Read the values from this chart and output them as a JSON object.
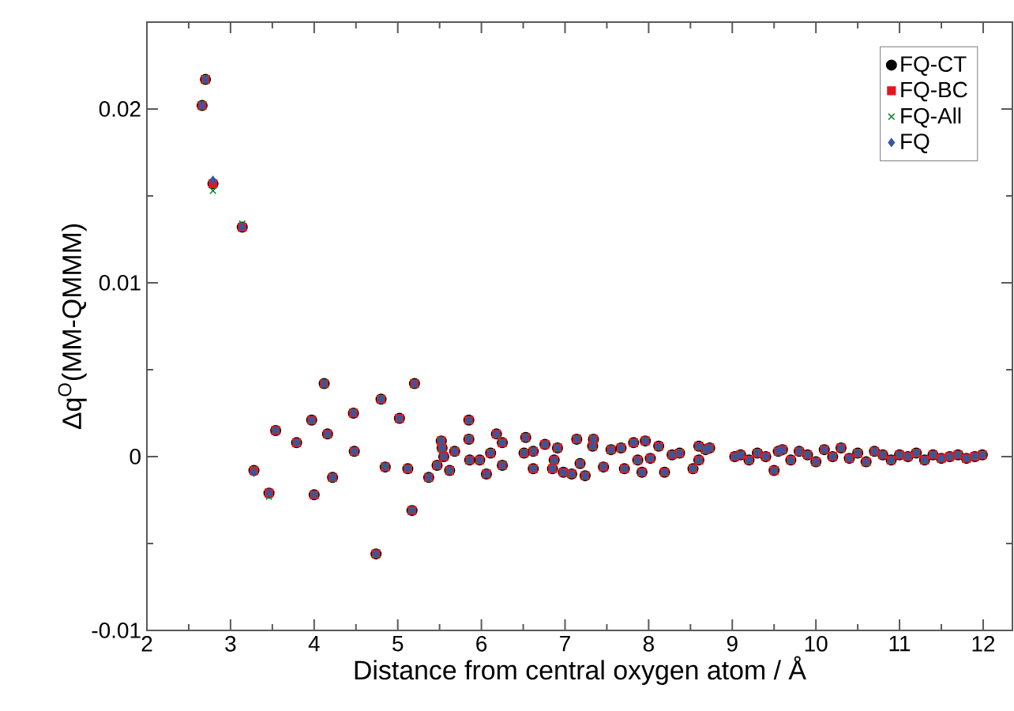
{
  "chart_data": {
    "type": "scatter",
    "xlabel": "Distance from central oxygen atom / Å",
    "ylabel": "Δq$^{O}$(MM-QMMM)",
    "xlim": [
      2,
      12.35
    ],
    "ylim": [
      -0.01,
      0.025
    ],
    "xticks": [
      2,
      3,
      4,
      5,
      6,
      7,
      8,
      9,
      10,
      11,
      12
    ],
    "yticks": [
      -0.01,
      0,
      0.01,
      0.02
    ],
    "grid": false,
    "legend": "top right",
    "x": [
      2.66,
      2.7,
      2.79,
      3.14,
      3.28,
      3.46,
      3.54,
      3.79,
      3.97,
      4.0,
      4.12,
      4.16,
      4.22,
      4.47,
      4.48,
      4.74,
      4.8,
      4.85,
      5.02,
      5.12,
      5.17,
      5.2,
      5.37,
      5.47,
      5.52,
      5.53,
      5.55,
      5.62,
      5.68,
      5.85,
      5.85,
      5.86,
      5.98,
      6.06,
      6.11,
      6.18,
      6.25,
      6.25,
      6.51,
      6.53,
      6.62,
      6.62,
      6.76,
      6.85,
      6.87,
      6.91,
      6.98,
      7.08,
      7.14,
      7.18,
      7.24,
      7.33,
      7.34,
      7.46,
      7.55,
      7.67,
      7.71,
      7.82,
      7.87,
      7.92,
      7.96,
      8.02,
      8.12,
      8.19,
      8.28,
      8.37,
      8.53,
      8.6,
      8.6,
      8.68,
      8.73,
      9.03,
      9.1,
      9.2,
      9.3,
      9.4,
      9.5,
      9.55,
      9.6,
      9.7,
      9.8,
      9.9,
      10.0,
      10.1,
      10.2,
      10.3,
      10.4,
      10.5,
      10.6,
      10.7,
      10.8,
      10.9,
      11.0,
      11.1,
      11.2,
      11.3,
      11.4,
      11.5,
      11.6,
      11.7,
      11.8,
      11.9,
      11.99
    ],
    "series": [
      {
        "name": "FQ-CT",
        "color": "#000000",
        "marker": "circle",
        "values": [
          0.0202,
          0.0217,
          0.0157,
          0.0132,
          -0.0008,
          -0.0021,
          0.0015,
          0.0008,
          0.0021,
          -0.0022,
          0.0042,
          0.0013,
          -0.0012,
          0.0025,
          0.0003,
          -0.0056,
          0.0033,
          -0.0006,
          0.0022,
          -0.0007,
          -0.0031,
          0.0042,
          -0.0012,
          -0.0005,
          0.0009,
          0.0005,
          0.0,
          -0.0008,
          0.0003,
          0.0021,
          0.001,
          -0.0002,
          -0.0002,
          -0.001,
          0.0002,
          0.0013,
          0.0008,
          -0.0005,
          0.0002,
          0.0011,
          0.0003,
          -0.0007,
          0.0007,
          -0.0007,
          -0.0002,
          0.0005,
          -0.0009,
          -0.001,
          0.001,
          -0.0004,
          -0.0011,
          0.0006,
          0.001,
          -0.0006,
          0.0004,
          0.0005,
          -0.0007,
          0.0008,
          -0.0002,
          -0.0009,
          0.0009,
          -0.0001,
          0.0006,
          -0.0009,
          0.0001,
          0.0002,
          -0.0007,
          0.0006,
          -0.0002,
          0.0004,
          0.0005,
          0.0,
          0.0001,
          -0.0002,
          0.0002,
          0.0,
          -0.0008,
          0.0003,
          0.0004,
          -0.0002,
          0.0003,
          0.0001,
          -0.0003,
          0.0004,
          0.0,
          0.0005,
          -0.0001,
          0.0002,
          -0.0003,
          0.0003,
          0.0001,
          -0.0002,
          0.0001,
          0.0,
          0.0002,
          -0.0002,
          0.0001,
          -0.0001,
          0.0,
          0.0001,
          -0.0001,
          0.0,
          0.0001
        ]
      },
      {
        "name": "FQ-BC",
        "color": "#e8141c",
        "marker": "square",
        "values": [
          0.0202,
          0.0217,
          0.0157,
          0.0132,
          -0.0008,
          -0.0021,
          0.0015,
          0.0008,
          0.0021,
          -0.0022,
          0.0042,
          0.0013,
          -0.0012,
          0.0025,
          0.0003,
          -0.0056,
          0.0033,
          -0.0006,
          0.0022,
          -0.0007,
          -0.0031,
          0.0042,
          -0.0012,
          -0.0005,
          0.0009,
          0.0005,
          0.0,
          -0.0008,
          0.0003,
          0.0021,
          0.001,
          -0.0002,
          -0.0002,
          -0.001,
          0.0002,
          0.0013,
          0.0008,
          -0.0005,
          0.0002,
          0.0011,
          0.0003,
          -0.0007,
          0.0007,
          -0.0007,
          -0.0002,
          0.0005,
          -0.0009,
          -0.001,
          0.001,
          -0.0004,
          -0.0011,
          0.0006,
          0.001,
          -0.0006,
          0.0004,
          0.0005,
          -0.0007,
          0.0008,
          -0.0002,
          -0.0009,
          0.0009,
          -0.0001,
          0.0006,
          -0.0009,
          0.0001,
          0.0002,
          -0.0007,
          0.0006,
          -0.0002,
          0.0004,
          0.0005,
          0.0,
          0.0001,
          -0.0002,
          0.0002,
          0.0,
          -0.0008,
          0.0003,
          0.0004,
          -0.0002,
          0.0003,
          0.0001,
          -0.0003,
          0.0004,
          0.0,
          0.0005,
          -0.0001,
          0.0002,
          -0.0003,
          0.0003,
          0.0001,
          -0.0002,
          0.0001,
          0.0,
          0.0002,
          -0.0002,
          0.0001,
          -0.0001,
          0.0,
          0.0001,
          -0.0001,
          0.0,
          0.0001
        ]
      },
      {
        "name": "FQ-All",
        "color": "#138a2e",
        "marker": "cross",
        "values": [
          0.0202,
          0.0217,
          0.0153,
          0.0134,
          -0.0007,
          -0.0023,
          0.0015,
          0.0008,
          0.0021,
          -0.0022,
          0.0042,
          0.0013,
          -0.0012,
          0.0025,
          0.0003,
          -0.0056,
          0.0033,
          -0.0006,
          0.0022,
          -0.0007,
          -0.0031,
          0.0042,
          -0.0012,
          -0.0005,
          0.0009,
          0.0005,
          0.0,
          -0.0008,
          0.0003,
          0.0021,
          0.001,
          -0.0002,
          -0.0002,
          -0.001,
          0.0002,
          0.0013,
          0.0008,
          -0.0005,
          0.0002,
          0.0011,
          0.0003,
          -0.0007,
          0.0007,
          -0.0007,
          -0.0002,
          0.0005,
          -0.0009,
          -0.001,
          0.001,
          -0.0004,
          -0.0011,
          0.0006,
          0.001,
          -0.0006,
          0.0004,
          0.0005,
          -0.0007,
          0.0008,
          -0.0002,
          -0.0009,
          0.0009,
          -0.0001,
          0.0006,
          -0.0009,
          0.0001,
          0.0002,
          -0.0007,
          0.0006,
          -0.0002,
          0.0004,
          0.0005,
          0.0,
          0.0001,
          -0.0002,
          0.0002,
          0.0,
          -0.0008,
          0.0003,
          0.0004,
          -0.0002,
          0.0003,
          0.0001,
          -0.0003,
          0.0004,
          0.0,
          0.0005,
          -0.0001,
          0.0002,
          -0.0003,
          0.0003,
          0.0001,
          -0.0002,
          0.0001,
          0.0,
          0.0002,
          -0.0002,
          0.0001,
          -0.0001,
          0.0,
          0.0001,
          -0.0001,
          0.0,
          0.0001
        ]
      },
      {
        "name": "FQ",
        "color": "#3a55a4",
        "marker": "diamond",
        "values": [
          0.0202,
          0.0217,
          0.0159,
          0.0132,
          -0.0009,
          -0.0021,
          0.0015,
          0.0008,
          0.0021,
          -0.0022,
          0.0042,
          0.0013,
          -0.0012,
          0.0025,
          0.0003,
          -0.0056,
          0.0033,
          -0.0006,
          0.0022,
          -0.0007,
          -0.0031,
          0.0042,
          -0.0012,
          -0.0005,
          0.0009,
          0.0005,
          0.0,
          -0.0008,
          0.0003,
          0.0021,
          0.001,
          -0.0002,
          -0.0002,
          -0.001,
          0.0002,
          0.0013,
          0.0008,
          -0.0005,
          0.0002,
          0.0011,
          0.0003,
          -0.0007,
          0.0007,
          -0.0007,
          -0.0002,
          0.0005,
          -0.0009,
          -0.001,
          0.001,
          -0.0004,
          -0.0011,
          0.0006,
          0.001,
          -0.0006,
          0.0004,
          0.0005,
          -0.0007,
          0.0008,
          -0.0002,
          -0.0009,
          0.0009,
          -0.0001,
          0.0006,
          -0.0009,
          0.0001,
          0.0002,
          -0.0007,
          0.0006,
          -0.0002,
          0.0004,
          0.0005,
          0.0,
          0.0001,
          -0.0002,
          0.0002,
          0.0,
          -0.0008,
          0.0003,
          0.0004,
          -0.0002,
          0.0003,
          0.0001,
          -0.0003,
          0.0004,
          0.0,
          0.0005,
          -0.0001,
          0.0002,
          -0.0003,
          0.0003,
          0.0001,
          -0.0002,
          0.0001,
          0.0,
          0.0002,
          -0.0002,
          0.0001,
          -0.0001,
          0.0,
          0.0001,
          -0.0001,
          0.0,
          0.0001
        ]
      }
    ]
  }
}
